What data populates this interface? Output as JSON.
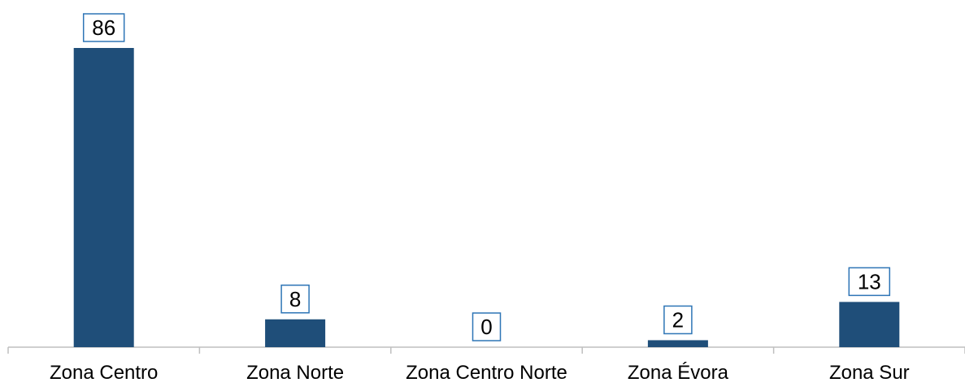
{
  "chart_data": {
    "type": "bar",
    "title": "",
    "xlabel": "",
    "ylabel": "",
    "categories": [
      "Zona Centro",
      "Zona Norte",
      "Zona Centro Norte",
      "Zona Évora",
      "Zona Sur"
    ],
    "values": [
      86,
      8,
      0,
      2,
      13
    ],
    "ylim": [
      0,
      86
    ],
    "grid": false,
    "legend": "none",
    "data_labels": true,
    "colors": {
      "bar": "#1f4e79",
      "label_border": "#2e75b6",
      "axis": "#bfbfbf",
      "text": "#000000"
    }
  }
}
